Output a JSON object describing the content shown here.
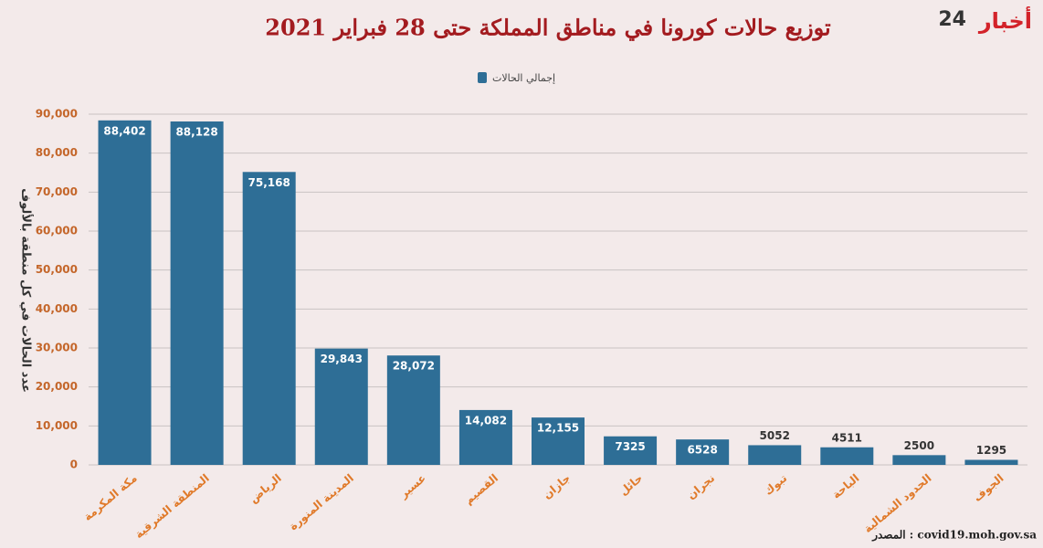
{
  "logo": {
    "word": "أخبار",
    "number": "24"
  },
  "chart_data": {
    "type": "bar",
    "title": "توزيع حالات كورونا في مناطق المملكة حتى 28 فبراير 2021",
    "y_label": "عدد الحالات في كل منطقة بالألوف",
    "source": "المصدر : covid19.moh.gov.sa",
    "categories": [
      "مكة المكرمة",
      "المنطقة الشرقية",
      "الرياض",
      "المدينة المنورة",
      "عسير",
      "القصيم",
      "جازان",
      "حائل",
      "نجران",
      "تبوك",
      "الباحة",
      "الحدود الشمالية",
      "الجوف"
    ],
    "series": [
      {
        "name": "إجمالي الحالات",
        "color": "#2e6e96",
        "values": [
          88402,
          88128,
          75168,
          29843,
          28072,
          14082,
          12155,
          7325,
          6528,
          5052,
          4511,
          2500,
          1295
        ],
        "value_labels": [
          "88,402",
          "88,128",
          "75,168",
          "29,843",
          "28,072",
          "14,082",
          "12,155",
          "7325",
          "6528",
          "5052",
          "4511",
          "2500",
          "1295"
        ]
      }
    ],
    "ylim": [
      0,
      90000
    ],
    "yticks": [
      0,
      {
        "value": 10000,
        "label": "10,000"
      },
      {
        "value": 20000,
        "label": "20,000"
      },
      {
        "value": 30000,
        "label": "30,000"
      },
      {
        "value": 40000,
        "label": "40,000"
      },
      {
        "value": 50000,
        "label": "50,000"
      },
      {
        "value": 60000,
        "label": "60,000"
      },
      {
        "value": 70000,
        "label": "70,000"
      },
      {
        "value": 80000,
        "label": "80,000"
      },
      {
        "value": 90000,
        "label": "90,000"
      }
    ],
    "grid": true,
    "legend": "top"
  }
}
